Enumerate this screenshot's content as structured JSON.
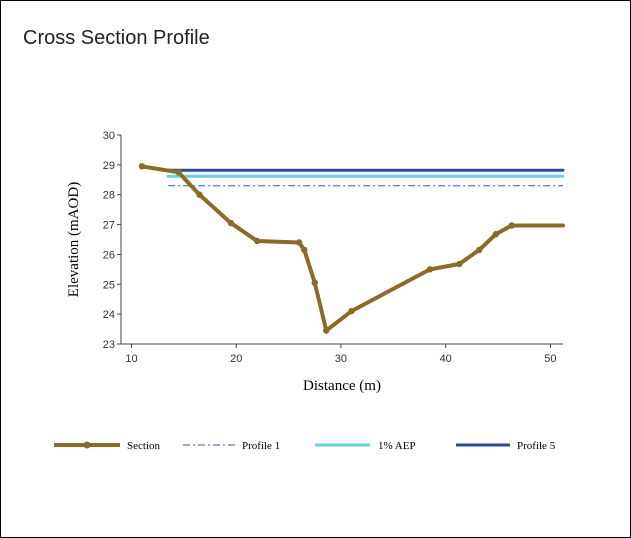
{
  "panel": {
    "title": "Cross Section Profile"
  },
  "chart_data": {
    "type": "line",
    "title": "Cross Section Profile",
    "xlabel": "Distance (m)",
    "ylabel": "Elevation (mAOD)",
    "xlim": [
      9,
      51.2
    ],
    "ylim": [
      23,
      30
    ],
    "xticks": [
      10,
      20,
      30,
      40,
      50
    ],
    "yticks": [
      23,
      24,
      25,
      26,
      27,
      28,
      29,
      30
    ],
    "grid": false,
    "legend_position": "bottom",
    "series": [
      {
        "name": "Section",
        "color": "#8c6a27",
        "style": "solid-thick-markers",
        "x": [
          11,
          14.5,
          16.5,
          19.5,
          22,
          26,
          26.5,
          27.5,
          28.6,
          31,
          38.5,
          41.3,
          43.2,
          44.8,
          46.3,
          51.2
        ],
        "y": [
          28.95,
          28.75,
          28.0,
          27.05,
          26.45,
          26.4,
          26.15,
          25.05,
          23.45,
          24.1,
          25.5,
          25.68,
          26.15,
          26.68,
          26.97,
          26.97
        ]
      },
      {
        "name": "Profile 1",
        "color": "#3f56a8",
        "style": "dash-dot",
        "x": [
          13.5,
          51.2
        ],
        "y": [
          28.3,
          28.3
        ]
      },
      {
        "name": "1% AEP",
        "color": "#6ccfe0",
        "style": "solid",
        "x": [
          13.5,
          51.2
        ],
        "y": [
          28.62,
          28.62
        ]
      },
      {
        "name": "Profile 5",
        "color": "#2c4a9c",
        "style": "solid",
        "x": [
          13.5,
          51.2
        ],
        "y": [
          28.82,
          28.82
        ]
      }
    ]
  }
}
